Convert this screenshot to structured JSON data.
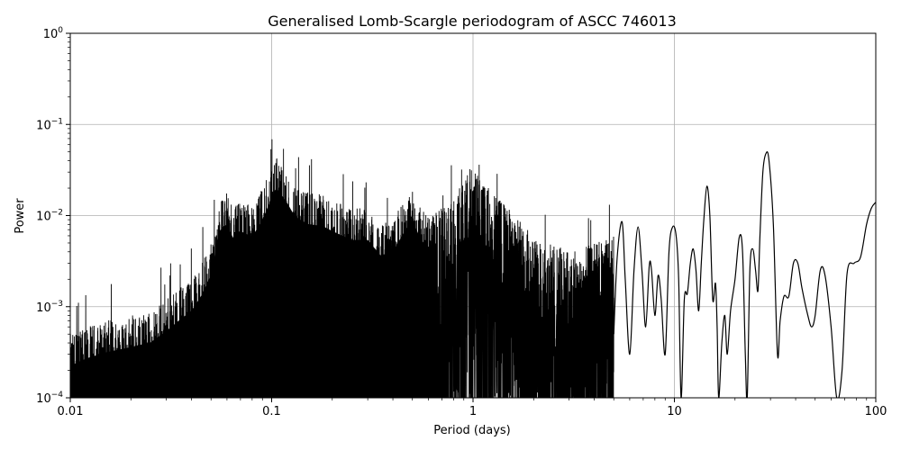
{
  "chart_data": {
    "type": "line",
    "title": "Generalised Lomb-Scargle periodogram of ASCC 746013",
    "xlabel": "Period (days)",
    "ylabel": "Power",
    "xscale": "log",
    "yscale": "log",
    "xlim": [
      0.01,
      100
    ],
    "ylim": [
      0.0001,
      1
    ],
    "grid": true,
    "x_ticks": [
      {
        "value": 0.01,
        "label": "0.01"
      },
      {
        "value": 0.1,
        "label": "0.1"
      },
      {
        "value": 1,
        "label": "1"
      },
      {
        "value": 10,
        "label": "10"
      },
      {
        "value": 100,
        "label": "100"
      }
    ],
    "y_ticks": [
      {
        "value": 0.0001,
        "base": "10",
        "exp": "−4"
      },
      {
        "value": 0.001,
        "base": "10",
        "exp": "−3"
      },
      {
        "value": 0.01,
        "base": "10",
        "exp": "−2"
      },
      {
        "value": 0.1,
        "base": "10",
        "exp": "−1"
      },
      {
        "value": 1,
        "base": "10",
        "exp": "0"
      }
    ],
    "series_color": "#000000",
    "series": [
      {
        "peak_envelope": [
          [
            0.01,
            0.0005
          ],
          [
            0.012,
            0.0006
          ],
          [
            0.015,
            0.0007
          ],
          [
            0.02,
            0.0008
          ],
          [
            0.025,
            0.0009
          ],
          [
            0.03,
            0.0012
          ],
          [
            0.035,
            0.0016
          ],
          [
            0.04,
            0.002
          ],
          [
            0.045,
            0.003
          ],
          [
            0.05,
            0.005
          ],
          [
            0.055,
            0.015
          ],
          [
            0.06,
            0.018
          ],
          [
            0.065,
            0.012
          ],
          [
            0.07,
            0.015
          ],
          [
            0.08,
            0.013
          ],
          [
            0.09,
            0.02
          ],
          [
            0.1,
            0.035
          ],
          [
            0.105,
            0.045
          ],
          [
            0.11,
            0.04
          ],
          [
            0.12,
            0.03
          ],
          [
            0.13,
            0.022
          ],
          [
            0.15,
            0.018
          ],
          [
            0.18,
            0.017
          ],
          [
            0.2,
            0.015
          ],
          [
            0.25,
            0.012
          ],
          [
            0.3,
            0.012
          ],
          [
            0.35,
            0.008
          ],
          [
            0.4,
            0.009
          ],
          [
            0.45,
            0.014
          ],
          [
            0.5,
            0.02
          ],
          [
            0.55,
            0.012
          ],
          [
            0.6,
            0.01
          ],
          [
            0.7,
            0.012
          ],
          [
            0.8,
            0.015
          ],
          [
            0.9,
            0.025
          ],
          [
            1.0,
            0.04
          ],
          [
            1.05,
            0.028
          ],
          [
            1.2,
            0.02
          ],
          [
            1.5,
            0.012
          ],
          [
            2.0,
            0.006
          ],
          [
            2.5,
            0.005
          ],
          [
            3.0,
            0.004
          ],
          [
            4.0,
            0.005
          ],
          [
            5.0,
            0.006
          ]
        ],
        "noise_floor_end": 0.65,
        "smooth_curve": [
          [
            5.0,
            0.0005
          ],
          [
            5.2,
            0.0035
          ],
          [
            5.5,
            0.0085
          ],
          [
            5.7,
            0.002
          ],
          [
            6.0,
            0.0003
          ],
          [
            6.3,
            0.0025
          ],
          [
            6.6,
            0.0075
          ],
          [
            6.9,
            0.0025
          ],
          [
            7.2,
            0.0006
          ],
          [
            7.5,
            0.0028
          ],
          [
            7.7,
            0.0025
          ],
          [
            8.0,
            0.0008
          ],
          [
            8.3,
            0.0022
          ],
          [
            8.6,
            0.0012
          ],
          [
            9.0,
            0.0003
          ],
          [
            9.4,
            0.004
          ],
          [
            9.8,
            0.0075
          ],
          [
            10.2,
            0.006
          ],
          [
            10.5,
            0.002
          ],
          [
            10.8,
            0.0001
          ],
          [
            11.2,
            0.0012
          ],
          [
            11.6,
            0.0014
          ],
          [
            12.0,
            0.003
          ],
          [
            12.4,
            0.0043
          ],
          [
            12.8,
            0.0025
          ],
          [
            13.2,
            0.0009
          ],
          [
            13.6,
            0.003
          ],
          [
            14.0,
            0.009
          ],
          [
            14.5,
            0.021
          ],
          [
            15.0,
            0.01
          ],
          [
            15.5,
            0.0012
          ],
          [
            16.0,
            0.0018
          ],
          [
            16.3,
            0.0006
          ],
          [
            16.6,
            0.0001
          ],
          [
            17.2,
            0.0004
          ],
          [
            17.8,
            0.0008
          ],
          [
            18.3,
            0.0003
          ],
          [
            19.0,
            0.0009
          ],
          [
            20.0,
            0.002
          ],
          [
            21.0,
            0.0058
          ],
          [
            21.8,
            0.004
          ],
          [
            22.5,
            0.0003
          ],
          [
            23.0,
            0.0001
          ],
          [
            23.7,
            0.0025
          ],
          [
            24.5,
            0.0043
          ],
          [
            25.3,
            0.0025
          ],
          [
            26.0,
            0.0015
          ],
          [
            26.6,
            0.006
          ],
          [
            27.5,
            0.03
          ],
          [
            28.5,
            0.048
          ],
          [
            29.5,
            0.04
          ],
          [
            31.0,
            0.008
          ],
          [
            32.5,
            0.0003
          ],
          [
            33.5,
            0.0007
          ],
          [
            35.0,
            0.0013
          ],
          [
            37.0,
            0.0013
          ],
          [
            39.0,
            0.003
          ],
          [
            41.0,
            0.003
          ],
          [
            43.0,
            0.0016
          ],
          [
            46.0,
            0.0008
          ],
          [
            48.0,
            0.0006
          ],
          [
            50.0,
            0.0008
          ],
          [
            53.0,
            0.0025
          ],
          [
            56.0,
            0.0022
          ],
          [
            60.0,
            0.0006
          ],
          [
            64.0,
            0.0001
          ],
          [
            68.0,
            0.0002
          ],
          [
            72.0,
            0.0023
          ],
          [
            78.0,
            0.003
          ],
          [
            84.0,
            0.0035
          ],
          [
            90.0,
            0.008
          ],
          [
            95.0,
            0.012
          ],
          [
            100.0,
            0.014
          ]
        ]
      }
    ]
  }
}
